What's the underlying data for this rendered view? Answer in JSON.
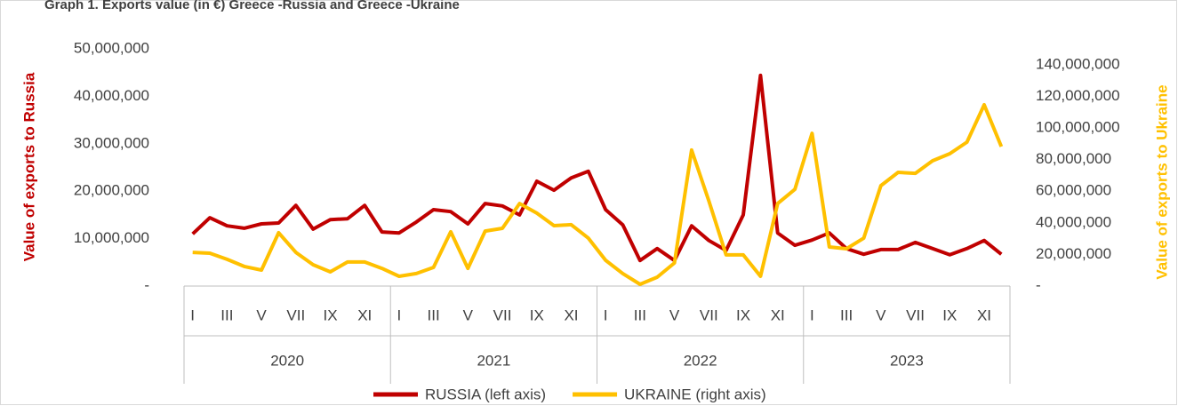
{
  "chart_data": {
    "type": "line",
    "title": "Graph 1. Exports value (in €) Greece -Russia and Greece -Ukraine",
    "ylabel": "Value of exports to Russia",
    "y2label": "Value of exports to Ukraine",
    "categories": [
      "I",
      null,
      "III",
      null,
      "V",
      null,
      "VII",
      null,
      "IX",
      null,
      "XI",
      null,
      "I",
      null,
      "III",
      null,
      "V",
      null,
      "VII",
      null,
      "IX",
      null,
      "XI",
      null,
      "I",
      null,
      "III",
      null,
      "V",
      null,
      "VII",
      null,
      "IX",
      null,
      "XI",
      null,
      "I",
      null,
      "III",
      null,
      "V",
      null,
      "VII",
      null,
      "IX",
      null,
      "XI",
      null
    ],
    "groups": [
      "2020",
      "2021",
      "2022",
      "2023"
    ],
    "series": [
      {
        "name": "RUSSIA (left axis)",
        "color": "#c00000",
        "axis": "y",
        "values": [
          11000000,
          14400000,
          12700000,
          12200000,
          13100000,
          13300000,
          17000000,
          12000000,
          14000000,
          14200000,
          17000000,
          11400000,
          11200000,
          13500000,
          16100000,
          15700000,
          13100000,
          17400000,
          16900000,
          15000000,
          22100000,
          20200000,
          22800000,
          24200000,
          16100000,
          12900000,
          5400000,
          7900000,
          5400000,
          12700000,
          9600000,
          7500000,
          15000000,
          44400000,
          11200000,
          8600000,
          9700000,
          11200000,
          7900000,
          6700000,
          7700000,
          7700000,
          9200000,
          7900000,
          6600000,
          7900000,
          9600000,
          6700000
        ]
      },
      {
        "name": "UKRAINE (right axis)",
        "color": "#ffc000",
        "axis": "y2",
        "values": [
          21300000,
          20800000,
          16900000,
          12400000,
          10100000,
          33700000,
          21300000,
          13500000,
          9000000,
          15200000,
          15200000,
          11200000,
          6200000,
          7900000,
          11800000,
          34300000,
          11200000,
          34800000,
          36500000,
          52200000,
          46100000,
          38200000,
          38800000,
          30300000,
          16300000,
          7900000,
          1100000,
          5600000,
          14600000,
          86000000,
          53900000,
          19700000,
          19700000,
          6200000,
          52200000,
          61200000,
          96600000,
          24700000,
          23600000,
          30300000,
          63500000,
          71900000,
          71300000,
          79200000,
          83700000,
          91000000,
          114600000,
          88200000
        ]
      }
    ],
    "ylim": [
      0,
      50000000
    ],
    "yticks": [
      {
        "value": 0,
        "label": "-"
      },
      {
        "value": 10000000,
        "label": "10,000,000"
      },
      {
        "value": 20000000,
        "label": "20,000,000"
      },
      {
        "value": 30000000,
        "label": "30,000,000"
      },
      {
        "value": 40000000,
        "label": "40,000,000"
      },
      {
        "value": 50000000,
        "label": "50,000,000"
      }
    ],
    "y2lim": [
      0,
      150000000
    ],
    "y2ticks": [
      {
        "value": 0,
        "label": "-"
      },
      {
        "value": 20000000,
        "label": "20,000,000"
      },
      {
        "value": 40000000,
        "label": "40,000,000"
      },
      {
        "value": 60000000,
        "label": "60,000,000"
      },
      {
        "value": 80000000,
        "label": "80,000,000"
      },
      {
        "value": 100000000,
        "label": "100,000,000"
      },
      {
        "value": 120000000,
        "label": "120,000,000"
      },
      {
        "value": 140000000,
        "label": "140,000,000"
      }
    ],
    "legend": "bottom"
  }
}
